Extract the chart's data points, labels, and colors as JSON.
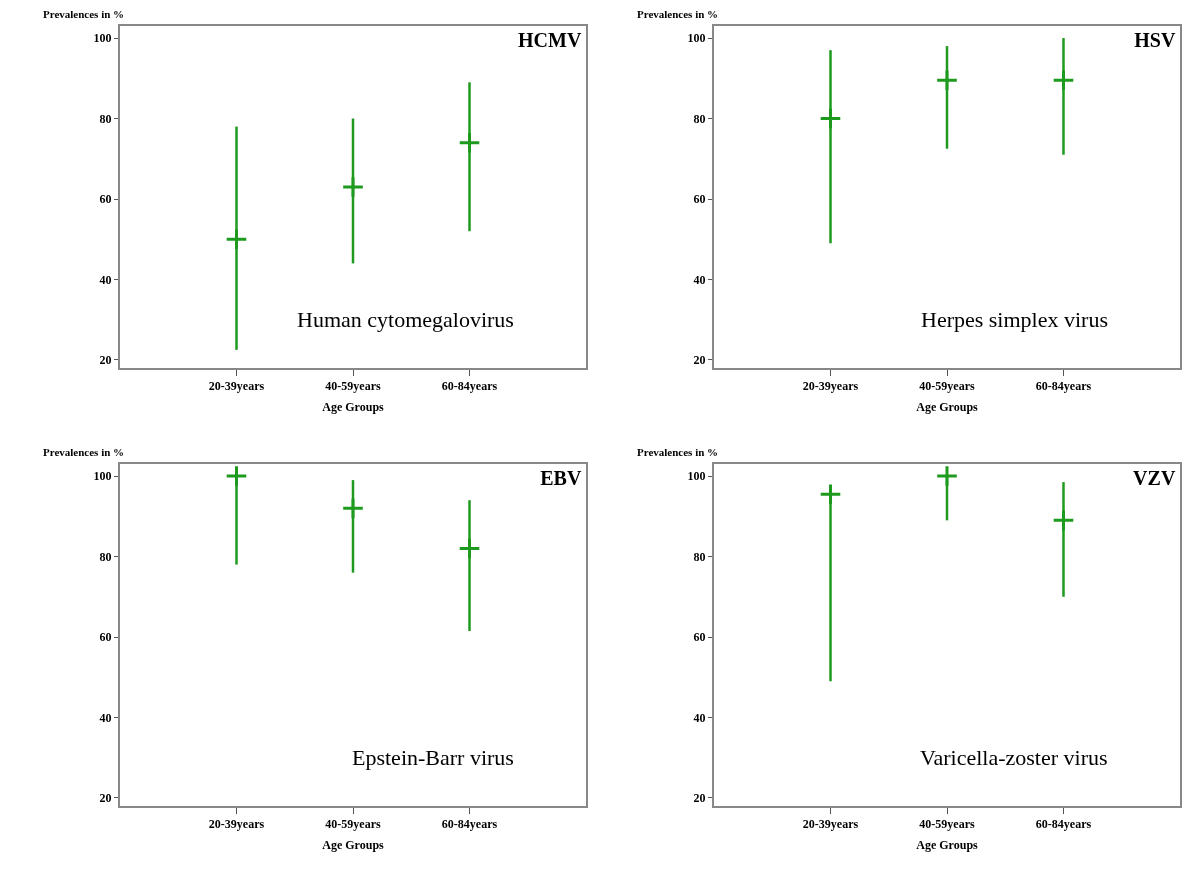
{
  "chart_data": [
    {
      "type": "scatter",
      "title": "HCMV",
      "xlabel": "Age Groups",
      "ylabel": "Prevalences in %",
      "annotations": [
        "Human cytomegalovirus"
      ],
      "categories": [
        "20-39years",
        "40-59years",
        "60-84years"
      ],
      "series": [
        {
          "color": "#1e9a1e",
          "values": [
            50,
            63,
            74
          ],
          "errors": [
            [
              22.5,
              78
            ],
            [
              44,
              80
            ],
            [
              52,
              89
            ]
          ]
        }
      ],
      "ylim": [
        18,
        103
      ],
      "yticks": [
        20,
        40,
        60,
        80,
        100
      ],
      "marker": "cross"
    },
    {
      "type": "scatter",
      "title": "HSV",
      "xlabel": "Age Groups",
      "ylabel": "Prevalences in %",
      "annotations": [
        "Herpes simplex virus"
      ],
      "categories": [
        "20-39years",
        "40-59years",
        "60-84years"
      ],
      "series": [
        {
          "color": "#1e9a1e",
          "values": [
            80,
            89.5,
            89.5
          ],
          "errors": [
            [
              49,
              97
            ],
            [
              72.5,
              98
            ],
            [
              71,
              100
            ]
          ]
        }
      ],
      "ylim": [
        18,
        103
      ],
      "yticks": [
        20,
        40,
        60,
        80,
        100
      ],
      "marker": "cross"
    },
    {
      "type": "scatter",
      "title": "EBV",
      "xlabel": "Age Groups",
      "ylabel": "Prevalences in %",
      "annotations": [
        "Epstein-Barr virus"
      ],
      "categories": [
        "20-39years",
        "40-59years",
        "60-84years"
      ],
      "series": [
        {
          "color": "#1e9a1e",
          "values": [
            100,
            92,
            82
          ],
          "errors": [
            [
              78,
              100
            ],
            [
              76,
              99
            ],
            [
              61.5,
              94
            ]
          ]
        }
      ],
      "ylim": [
        18,
        103
      ],
      "yticks": [
        20,
        40,
        60,
        80,
        100
      ],
      "marker": "cross"
    },
    {
      "type": "scatter",
      "title": "VZV",
      "xlabel": "Age Groups",
      "ylabel": "Prevalences in %",
      "annotations": [
        "Varicella-zoster virus"
      ],
      "categories": [
        "20-39years",
        "40-59years",
        "60-84years"
      ],
      "series": [
        {
          "color": "#1e9a1e",
          "values": [
            95.5,
            100,
            89
          ],
          "errors": [
            [
              49,
              97.5
            ],
            [
              89,
              100
            ],
            [
              70,
              98.5
            ]
          ]
        }
      ],
      "ylim": [
        18,
        103
      ],
      "yticks": [
        20,
        40,
        60,
        80,
        100
      ],
      "marker": "cross"
    }
  ]
}
